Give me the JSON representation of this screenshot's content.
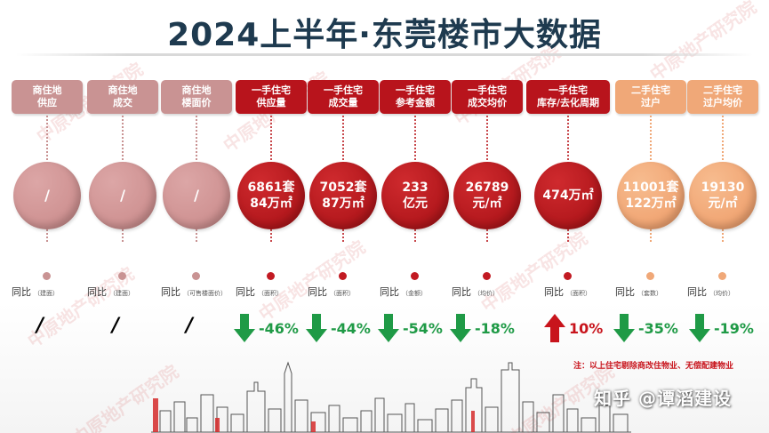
{
  "title": "2024上半年·东莞楼市大数据",
  "watermark": "中原地产研究院",
  "columns": [
    {
      "hdr1": "商住地",
      "hdr2": "供应",
      "circle1": "/",
      "circle2": "",
      "yoy_label": "同比",
      "yoy_note": "（建面）",
      "value": "/",
      "trend": "none",
      "tone": "gray"
    },
    {
      "hdr1": "商住地",
      "hdr2": "成交",
      "circle1": "/",
      "circle2": "",
      "yoy_label": "同比",
      "yoy_note": "（建面）",
      "value": "/",
      "trend": "none",
      "tone": "gray"
    },
    {
      "hdr1": "商住地",
      "hdr2": "楼面价",
      "circle1": "/",
      "circle2": "",
      "yoy_label": "同比",
      "yoy_note": "（可售楼面价）",
      "value": "/",
      "trend": "none",
      "tone": "gray"
    },
    {
      "hdr1": "一手住宅",
      "hdr2": "供应量",
      "circle1": "6861套",
      "circle2": "84万㎡",
      "yoy_label": "同比",
      "yoy_note": "（面积）",
      "value": "-46%",
      "trend": "down",
      "tone": "red"
    },
    {
      "hdr1": "一手住宅",
      "hdr2": "成交量",
      "circle1": "7052套",
      "circle2": "87万㎡",
      "yoy_label": "同比",
      "yoy_note": "（面积）",
      "value": "-44%",
      "trend": "down",
      "tone": "red"
    },
    {
      "hdr1": "一手住宅",
      "hdr2": "参考金额",
      "circle1": "233",
      "circle2": "亿元",
      "yoy_label": "同比",
      "yoy_note": "（金额）",
      "value": "-54%",
      "trend": "down",
      "tone": "red"
    },
    {
      "hdr1": "一手住宅",
      "hdr2": "成交均价",
      "circle1": "26789",
      "circle2": "元/㎡",
      "yoy_label": "同比",
      "yoy_note": "（均价）",
      "value": "-18%",
      "trend": "down",
      "tone": "red"
    },
    {
      "hdr1": "一手住宅",
      "hdr2": "库存/去化周期",
      "circle1": "474万㎡",
      "circle2": "",
      "yoy_label": "同比",
      "yoy_note": "（面积）",
      "value": "10%",
      "trend": "up",
      "tone": "red"
    },
    {
      "hdr1": "二手住宅",
      "hdr2": "过户",
      "circle1": "11001套",
      "circle2": "122万㎡",
      "yoy_label": "同比",
      "yoy_note": "（套数）",
      "value": "-35%",
      "trend": "down",
      "tone": "orange"
    },
    {
      "hdr1": "二手住宅",
      "hdr2": "过户均价",
      "circle1": "19130",
      "circle2": "元/㎡",
      "yoy_label": "同比",
      "yoy_note": "（均价）",
      "value": "-19%",
      "trend": "down",
      "tone": "orange"
    }
  ],
  "note": "注：以上住宅剔除商改住物业、无偿配建物业",
  "source_logo": "知乎 @谭滔建设"
}
